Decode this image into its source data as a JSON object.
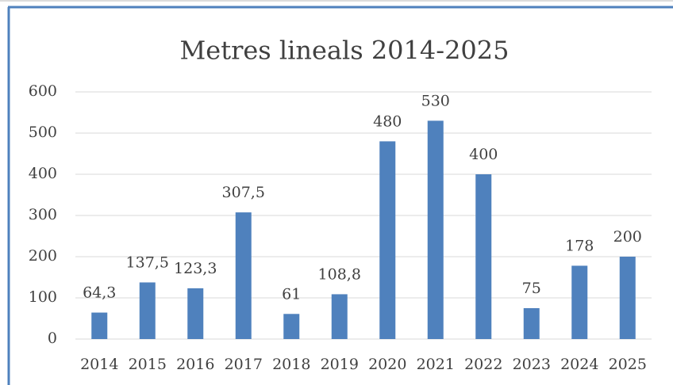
{
  "chart_data": {
    "type": "bar",
    "title": "Metres lineals 2014-2025",
    "categories": [
      "2014",
      "2015",
      "2016",
      "2017",
      "2018",
      "2019",
      "2020",
      "2021",
      "2022",
      "2023",
      "2024",
      "2025"
    ],
    "values": [
      64.3,
      137.5,
      123.3,
      307.5,
      61,
      108.8,
      480,
      530,
      400,
      75,
      178,
      200
    ],
    "value_labels": [
      "64,3",
      "137,5",
      "123,3",
      "307,5",
      "61",
      "108,8",
      "480",
      "530",
      "400",
      "75",
      "178",
      "200"
    ],
    "color": "#4f81bd",
    "ylim": [
      0,
      600
    ],
    "yticks": [
      0,
      100,
      200,
      300,
      400,
      500,
      600
    ],
    "grid": true
  }
}
